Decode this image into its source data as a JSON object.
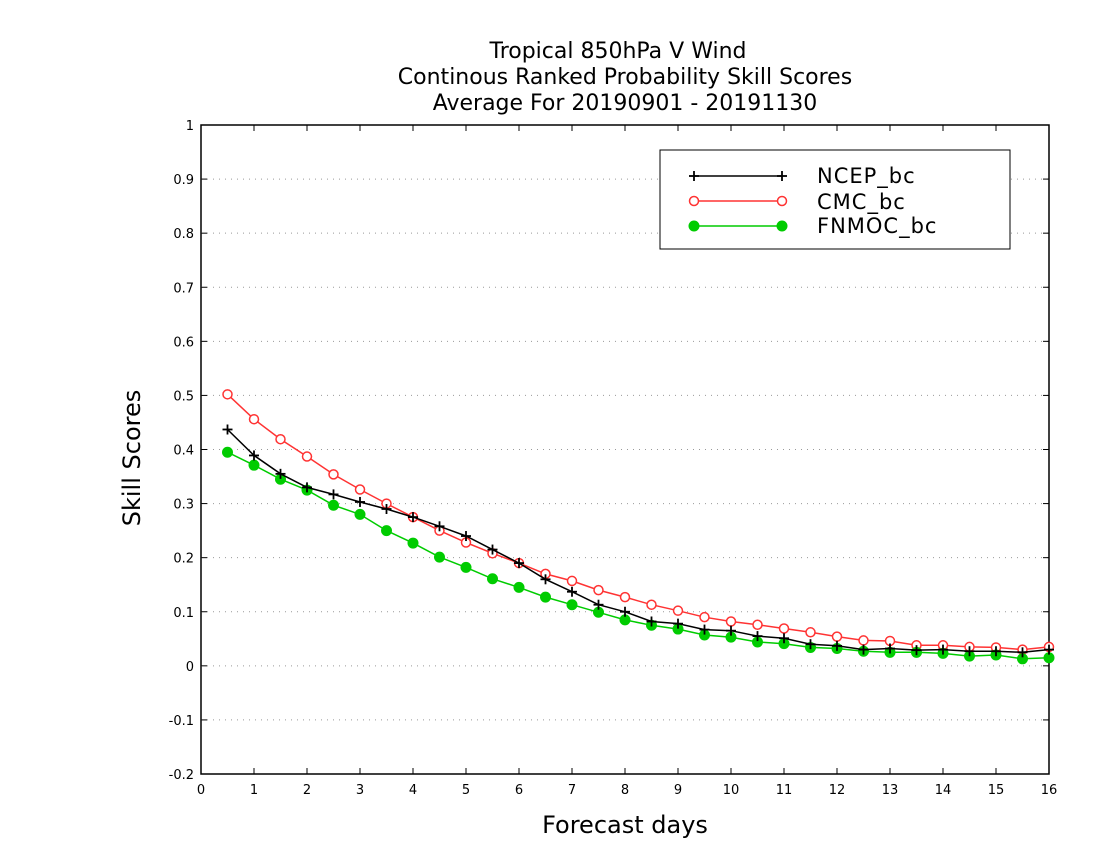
{
  "chart_data": {
    "type": "line",
    "title_lines": [
      "Tropical 850hPa V Wind",
      "Continous Ranked Probability Skill Scores",
      "Average For 20190901 - 20191130"
    ],
    "xlabel": "Forecast days",
    "ylabel": "Skill Scores",
    "xlim": [
      0,
      16
    ],
    "ylim": [
      -0.2,
      1
    ],
    "xticks": [
      "0",
      "1",
      "2",
      "3",
      "4",
      "5",
      "6",
      "7",
      "8",
      "9",
      "10",
      "11",
      "12",
      "13",
      "14",
      "15",
      "16"
    ],
    "yticks": [
      "-0.2",
      "-0.1",
      "0",
      "0.1",
      "0.2",
      "0.3",
      "0.4",
      "0.5",
      "0.6",
      "0.7",
      "0.8",
      "0.9",
      "1"
    ],
    "grid": "horizontal dotted",
    "legend_position": "top-right",
    "x": [
      0.5,
      1,
      1.5,
      2,
      2.5,
      3,
      3.5,
      4,
      4.5,
      5,
      5.5,
      6,
      6.5,
      7,
      7.5,
      8,
      8.5,
      9,
      9.5,
      10,
      10.5,
      11,
      11.5,
      12,
      12.5,
      13,
      13.5,
      14,
      14.5,
      15,
      15.5,
      16
    ],
    "series": [
      {
        "name": "NCEP_bc",
        "color": "#000000",
        "marker": "plus",
        "values": [
          0.437,
          0.389,
          0.355,
          0.33,
          0.317,
          0.303,
          0.29,
          0.275,
          0.258,
          0.24,
          0.215,
          0.19,
          0.16,
          0.137,
          0.113,
          0.1,
          0.082,
          0.078,
          0.067,
          0.065,
          0.055,
          0.051,
          0.04,
          0.037,
          0.03,
          0.032,
          0.029,
          0.03,
          0.027,
          0.027,
          0.025,
          0.03
        ]
      },
      {
        "name": "CMC_bc",
        "color": "#ff3333",
        "marker": "open-circle",
        "values": [
          0.502,
          0.456,
          0.419,
          0.387,
          0.354,
          0.326,
          0.3,
          0.275,
          0.25,
          0.228,
          0.208,
          0.19,
          0.17,
          0.157,
          0.14,
          0.127,
          0.113,
          0.102,
          0.09,
          0.082,
          0.076,
          0.069,
          0.062,
          0.054,
          0.047,
          0.046,
          0.038,
          0.038,
          0.035,
          0.034,
          0.03,
          0.035
        ]
      },
      {
        "name": "FNMOC_bc",
        "color": "#00cc00",
        "marker": "filled-circle",
        "values": [
          0.395,
          0.371,
          0.345,
          0.325,
          0.297,
          0.28,
          0.25,
          0.227,
          0.201,
          0.182,
          0.161,
          0.145,
          0.127,
          0.113,
          0.099,
          0.085,
          0.075,
          0.068,
          0.057,
          0.053,
          0.044,
          0.041,
          0.034,
          0.032,
          0.027,
          0.025,
          0.025,
          0.023,
          0.018,
          0.02,
          0.013,
          0.015
        ]
      }
    ]
  }
}
